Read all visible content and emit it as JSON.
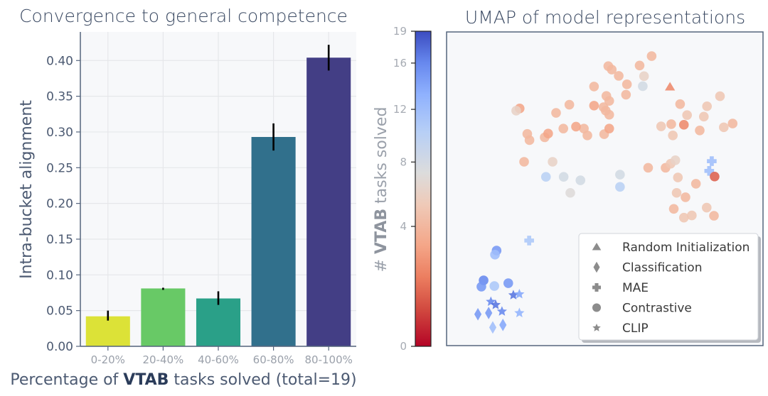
{
  "chart_data": [
    {
      "type": "bar",
      "title": "Convergence to general competence",
      "xlabel_parts": [
        "Percentage of ",
        "VTAB",
        " tasks solved (total=19)"
      ],
      "ylabel": "Intra-bucket alignment",
      "categories": [
        "0-20%",
        "20-40%",
        "40-60%",
        "60-80%",
        "80-100%"
      ],
      "values": [
        0.042,
        0.081,
        0.067,
        0.293,
        0.404
      ],
      "error_low": [
        0.036,
        0.079,
        0.058,
        0.274,
        0.386
      ],
      "error_high": [
        0.05,
        0.082,
        0.077,
        0.312,
        0.422
      ],
      "colors": [
        "#dce237",
        "#68c966",
        "#2aa088",
        "#31708c",
        "#433e85"
      ],
      "ylim": [
        0,
        0.44
      ],
      "yticks": [
        "0.00",
        "0.05",
        "0.10",
        "0.15",
        "0.20",
        "0.25",
        "0.30",
        "0.35",
        "0.40"
      ],
      "ytick_values": [
        0,
        0.05,
        0.1,
        0.15,
        0.2,
        0.25,
        0.3,
        0.35,
        0.4
      ],
      "grid": true
    },
    {
      "type": "scatter",
      "title": "UMAP of model representations",
      "colorbar": {
        "label_parts": [
          "# ",
          "VTAB",
          " tasks solved"
        ],
        "ticks": [
          "0",
          "4",
          "8",
          "12",
          "16",
          "19"
        ],
        "tick_values": [
          0,
          4,
          8,
          12,
          16,
          19
        ],
        "range": [
          0,
          19
        ],
        "colormap": "coolwarm_r"
      },
      "legend": {
        "position": "bottom-right",
        "entries": [
          {
            "label": "Random Initialization",
            "marker": "triangle"
          },
          {
            "label": "Classification",
            "marker": "diamond"
          },
          {
            "label": "MAE",
            "marker": "plus"
          },
          {
            "label": "Contrastive",
            "marker": "circle"
          },
          {
            "label": "CLIP",
            "marker": "star"
          }
        ]
      },
      "xlim": [
        0,
        100
      ],
      "ylim": [
        0,
        100
      ],
      "points": [
        {
          "x": 70.6,
          "y": 82.5,
          "marker": "triangle",
          "v": 2
        },
        {
          "x": 9.9,
          "y": 10.0,
          "marker": "diamond",
          "v": 15
        },
        {
          "x": 13.3,
          "y": 10.4,
          "marker": "diamond",
          "v": 15
        },
        {
          "x": 14.6,
          "y": 5.8,
          "marker": "diamond",
          "v": 12
        },
        {
          "x": 17.8,
          "y": 6.6,
          "marker": "diamond",
          "v": 14
        },
        {
          "x": 83.8,
          "y": 58.8,
          "marker": "plus",
          "v": 12
        },
        {
          "x": 83.0,
          "y": 55.7,
          "marker": "plus",
          "v": 12
        },
        {
          "x": 26.1,
          "y": 33.5,
          "marker": "plus",
          "v": 11
        },
        {
          "x": 84.7,
          "y": 53.9,
          "marker": "circle",
          "v": 1
        },
        {
          "x": 15.8,
          "y": 30.3,
          "marker": "circle",
          "v": 15
        },
        {
          "x": 15.3,
          "y": 29.0,
          "marker": "circle",
          "v": 12
        },
        {
          "x": 11.7,
          "y": 20.8,
          "marker": "circle",
          "v": 16
        },
        {
          "x": 11.0,
          "y": 18.8,
          "marker": "circle",
          "v": 15
        },
        {
          "x": 15.1,
          "y": 19.0,
          "marker": "circle",
          "v": 11
        },
        {
          "x": 19.5,
          "y": 19.9,
          "marker": "circle",
          "v": 15
        },
        {
          "x": 31.4,
          "y": 53.8,
          "marker": "circle",
          "v": 10
        },
        {
          "x": 37.0,
          "y": 53.8,
          "marker": "circle",
          "v": 8
        },
        {
          "x": 42.3,
          "y": 52.7,
          "marker": "circle",
          "v": 8
        },
        {
          "x": 39.1,
          "y": 48.7,
          "marker": "circle",
          "v": 7
        },
        {
          "x": 54.8,
          "y": 54.5,
          "marker": "circle",
          "v": 8
        },
        {
          "x": 54.8,
          "y": 50.6,
          "marker": "circle",
          "v": 10
        },
        {
          "x": 24.5,
          "y": 58.6,
          "marker": "circle",
          "v": 4
        },
        {
          "x": 33.5,
          "y": 58.6,
          "marker": "circle",
          "v": 6
        },
        {
          "x": 25.5,
          "y": 67.5,
          "marker": "circle",
          "v": 4
        },
        {
          "x": 26.2,
          "y": 65.5,
          "marker": "circle",
          "v": 4
        },
        {
          "x": 31.0,
          "y": 66.4,
          "marker": "circle",
          "v": 4
        },
        {
          "x": 32.1,
          "y": 67.6,
          "marker": "circle",
          "v": 3
        },
        {
          "x": 36.9,
          "y": 69.2,
          "marker": "circle",
          "v": 4
        },
        {
          "x": 43.4,
          "y": 69.2,
          "marker": "circle",
          "v": 4
        },
        {
          "x": 40.9,
          "y": 69.8,
          "marker": "circle",
          "v": 3
        },
        {
          "x": 44.5,
          "y": 67.0,
          "marker": "circle",
          "v": 4
        },
        {
          "x": 49.8,
          "y": 67.4,
          "marker": "circle",
          "v": 4
        },
        {
          "x": 51.4,
          "y": 69.2,
          "marker": "circle",
          "v": 3
        },
        {
          "x": 34.6,
          "y": 74.2,
          "marker": "circle",
          "v": 4
        },
        {
          "x": 38.8,
          "y": 76.8,
          "marker": "circle",
          "v": 4
        },
        {
          "x": 49.6,
          "y": 76.0,
          "marker": "circle",
          "v": 4
        },
        {
          "x": 51.4,
          "y": 73.6,
          "marker": "circle",
          "v": 4
        },
        {
          "x": 51.4,
          "y": 78.0,
          "marker": "circle",
          "v": 4
        },
        {
          "x": 50.3,
          "y": 74.9,
          "marker": "circle",
          "v": 4
        },
        {
          "x": 46.6,
          "y": 76.5,
          "marker": "circle",
          "v": 3
        },
        {
          "x": 23.1,
          "y": 75.6,
          "marker": "circle",
          "v": 3
        },
        {
          "x": 22.0,
          "y": 74.9,
          "marker": "circle",
          "v": 6
        },
        {
          "x": 46.6,
          "y": 82.6,
          "marker": "circle",
          "v": 4
        },
        {
          "x": 50.5,
          "y": 79.6,
          "marker": "circle",
          "v": 4
        },
        {
          "x": 51.1,
          "y": 89.1,
          "marker": "circle",
          "v": 4
        },
        {
          "x": 52.2,
          "y": 88.0,
          "marker": "circle",
          "v": 4
        },
        {
          "x": 54.4,
          "y": 86.0,
          "marker": "circle",
          "v": 4
        },
        {
          "x": 57.0,
          "y": 83.3,
          "marker": "circle",
          "v": 4
        },
        {
          "x": 56.7,
          "y": 80.0,
          "marker": "circle",
          "v": 4
        },
        {
          "x": 64.8,
          "y": 92.3,
          "marker": "circle",
          "v": 4
        },
        {
          "x": 61.0,
          "y": 89.3,
          "marker": "circle",
          "v": 4
        },
        {
          "x": 62.4,
          "y": 85.9,
          "marker": "circle",
          "v": 6
        },
        {
          "x": 62.0,
          "y": 82.7,
          "marker": "circle",
          "v": 8
        },
        {
          "x": 73.8,
          "y": 77.0,
          "marker": "circle",
          "v": 4
        },
        {
          "x": 82.3,
          "y": 76.3,
          "marker": "circle",
          "v": 5
        },
        {
          "x": 86.4,
          "y": 79.5,
          "marker": "circle",
          "v": 5
        },
        {
          "x": 76.0,
          "y": 73.5,
          "marker": "circle",
          "v": 5
        },
        {
          "x": 81.3,
          "y": 73.0,
          "marker": "circle",
          "v": 5
        },
        {
          "x": 67.8,
          "y": 69.9,
          "marker": "circle",
          "v": 5
        },
        {
          "x": 71.0,
          "y": 70.6,
          "marker": "circle",
          "v": 4
        },
        {
          "x": 75.0,
          "y": 70.4,
          "marker": "circle",
          "v": 2
        },
        {
          "x": 80.0,
          "y": 68.6,
          "marker": "circle",
          "v": 4
        },
        {
          "x": 87.6,
          "y": 69.6,
          "marker": "circle",
          "v": 5
        },
        {
          "x": 90.4,
          "y": 70.8,
          "marker": "circle",
          "v": 4
        },
        {
          "x": 71.5,
          "y": 67.0,
          "marker": "circle",
          "v": 5
        },
        {
          "x": 63.7,
          "y": 56.7,
          "marker": "circle",
          "v": 4
        },
        {
          "x": 69.2,
          "y": 56.7,
          "marker": "circle",
          "v": 4
        },
        {
          "x": 70.8,
          "y": 58.0,
          "marker": "circle",
          "v": 5
        },
        {
          "x": 72.3,
          "y": 59.1,
          "marker": "circle",
          "v": 6
        },
        {
          "x": 73.1,
          "y": 53.6,
          "marker": "circle",
          "v": 5
        },
        {
          "x": 78.8,
          "y": 51.6,
          "marker": "circle",
          "v": 4
        },
        {
          "x": 72.7,
          "y": 48.7,
          "marker": "circle",
          "v": 5
        },
        {
          "x": 75.5,
          "y": 47.3,
          "marker": "circle",
          "v": 4
        },
        {
          "x": 71.8,
          "y": 43.6,
          "marker": "circle",
          "v": 4
        },
        {
          "x": 77.5,
          "y": 41.5,
          "marker": "circle",
          "v": 5
        },
        {
          "x": 75.0,
          "y": 40.8,
          "marker": "circle",
          "v": 5
        },
        {
          "x": 82.2,
          "y": 44.0,
          "marker": "circle",
          "v": 5
        },
        {
          "x": 84.5,
          "y": 41.4,
          "marker": "circle",
          "v": 4
        },
        {
          "x": 14.0,
          "y": 14.0,
          "marker": "star",
          "v": 16
        },
        {
          "x": 15.5,
          "y": 13.0,
          "marker": "star",
          "v": 17
        },
        {
          "x": 17.5,
          "y": 10.9,
          "marker": "star",
          "v": 16
        },
        {
          "x": 21.1,
          "y": 16.1,
          "marker": "star",
          "v": 17
        },
        {
          "x": 23.0,
          "y": 16.4,
          "marker": "star",
          "v": 14
        },
        {
          "x": 23.0,
          "y": 10.4,
          "marker": "star",
          "v": 13
        }
      ]
    }
  ]
}
